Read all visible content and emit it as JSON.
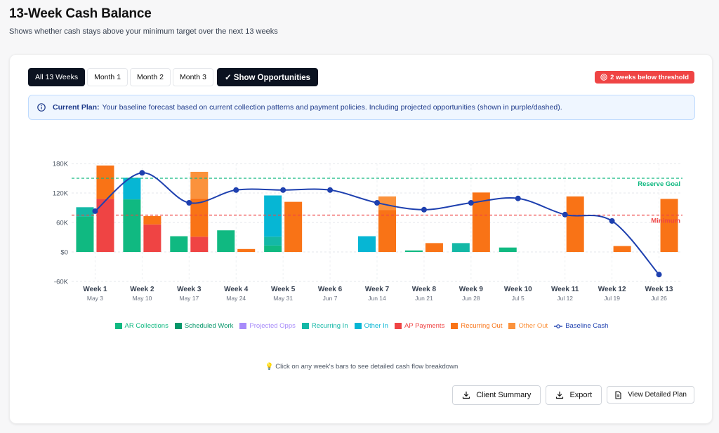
{
  "header": {
    "title": "13-Week Cash Balance",
    "subtitle": "Shows whether cash stays above your minimum target over the next 13 weeks"
  },
  "toolbar": {
    "buttons": [
      {
        "label": "All 13 Weeks",
        "active": true
      },
      {
        "label": "Month 1",
        "active": false
      },
      {
        "label": "Month 2",
        "active": false
      },
      {
        "label": "Month 3",
        "active": false
      }
    ],
    "opportunities_label": "✓ Show Opportunities"
  },
  "threshold_badge": {
    "icon": "target-icon",
    "label": "2 weeks below threshold",
    "color": "#ef4444"
  },
  "plan_info": {
    "icon": "info-icon",
    "heading": "Current Plan:",
    "text": "Your baseline forecast based on current collection patterns and payment policies. Including projected opportunities (shown in purple/dashed)."
  },
  "chart_data": {
    "type": "bar",
    "ylim": [
      -60000,
      180000
    ],
    "yticks": [
      {
        "value": 180000,
        "label": "180K"
      },
      {
        "value": 120000,
        "label": "120K"
      },
      {
        "value": 60000,
        "label": "60K"
      },
      {
        "value": 0,
        "label": "$0"
      },
      {
        "value": -60000,
        "label": "-60K"
      }
    ],
    "categories": [
      "Week 1",
      "Week 2",
      "Week 3",
      "Week 4",
      "Week 5",
      "Week 6",
      "Week 7",
      "Week 8",
      "Week 9",
      "Week 10",
      "Week 11",
      "Week 12",
      "Week 13"
    ],
    "dates": [
      "May 3",
      "May 10",
      "May 17",
      "May 24",
      "May 31",
      "Jun 7",
      "Jun 14",
      "Jun 21",
      "Jun 28",
      "Jul 5",
      "Jul 12",
      "Jul 19",
      "Jul 26"
    ],
    "inflow_series": [
      {
        "name": "AR Collections",
        "color": "#10b981",
        "values": [
          72000,
          107000,
          32000,
          44000,
          13000,
          0,
          0,
          3000,
          0,
          9000,
          0,
          0,
          0
        ]
      },
      {
        "name": "Scheduled Work",
        "color": "#059669",
        "values": [
          0,
          0,
          0,
          0,
          0,
          0,
          0,
          0,
          0,
          0,
          0,
          0,
          0
        ]
      },
      {
        "name": "Projected Opps",
        "color": "#a78bfa",
        "values": [
          0,
          0,
          0,
          0,
          0,
          0,
          0,
          0,
          0,
          0,
          0,
          0,
          0
        ]
      },
      {
        "name": "Recurring In",
        "color": "#14b8a6",
        "values": [
          19000,
          0,
          0,
          0,
          18000,
          0,
          0,
          0,
          18000,
          0,
          0,
          0,
          0
        ]
      },
      {
        "name": "Other In",
        "color": "#06b6d4",
        "values": [
          0,
          44000,
          0,
          0,
          84000,
          0,
          32000,
          0,
          0,
          0,
          0,
          0,
          0
        ]
      }
    ],
    "outflow_series": [
      {
        "name": "AP Payments",
        "color": "#ef4444",
        "values": [
          108000,
          56000,
          31000,
          0,
          0,
          0,
          0,
          0,
          0,
          0,
          0,
          0,
          0
        ]
      },
      {
        "name": "Recurring Out",
        "color": "#f97316",
        "values": [
          68000,
          17000,
          78000,
          6000,
          102000,
          0,
          85000,
          18000,
          121000,
          0,
          113000,
          12000,
          108000
        ]
      },
      {
        "name": "Other Out",
        "color": "#fb923c",
        "values": [
          0,
          0,
          54000,
          0,
          0,
          0,
          28000,
          0,
          0,
          0,
          0,
          0,
          0
        ]
      }
    ],
    "line_series": {
      "name": "Baseline Cash",
      "color": "#1e40af",
      "values": [
        83000,
        161000,
        100000,
        126000,
        126000,
        126000,
        100000,
        86000,
        100000,
        109000,
        76000,
        63000,
        -46000
      ]
    },
    "reference_lines": [
      {
        "label": "Reserve Goal",
        "value": 150000,
        "color": "#10b981"
      },
      {
        "label": "Minimum",
        "value": 75000,
        "color": "#ef4444"
      }
    ]
  },
  "legend": [
    {
      "label": "AR Collections",
      "color": "#10b981"
    },
    {
      "label": "Scheduled Work",
      "color": "#059669"
    },
    {
      "label": "Projected Opps",
      "color": "#a78bfa"
    },
    {
      "label": "Recurring In",
      "color": "#14b8a6"
    },
    {
      "label": "Other In",
      "color": "#06b6d4"
    },
    {
      "label": "AP Payments",
      "color": "#ef4444"
    },
    {
      "label": "Recurring Out",
      "color": "#f97316"
    },
    {
      "label": "Other Out",
      "color": "#fb923c"
    },
    {
      "label": "Baseline Cash",
      "color": "#1e40af"
    }
  ],
  "hint": "💡 Click on any week's bars to see detailed cash flow breakdown",
  "actions": {
    "client_summary": "Client Summary",
    "export": "Export",
    "view_plan": "View Detailed Plan"
  }
}
